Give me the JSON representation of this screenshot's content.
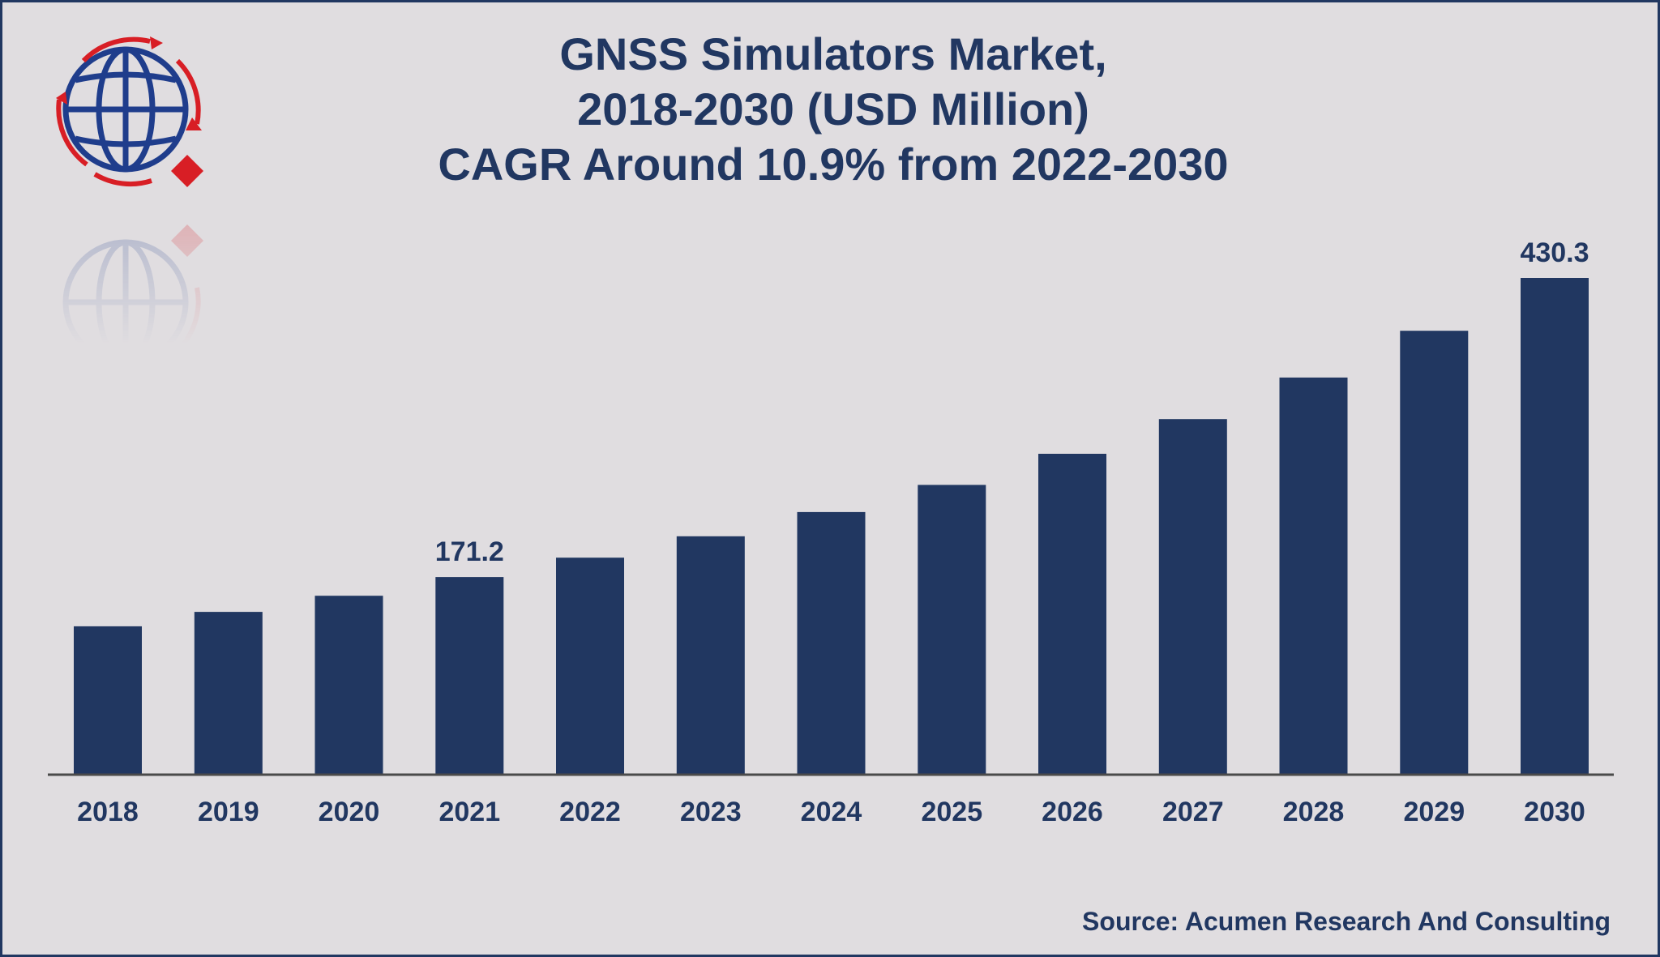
{
  "logo": {
    "icon": "globe-logo-icon",
    "colors": {
      "globe": "#1f3d8c",
      "accent": "#d81e25"
    }
  },
  "title": {
    "line1": "GNSS Simulators Market,",
    "line2": "2018-2030 (USD Million)",
    "line3": "CAGR Around 10.9% from 2022-2030"
  },
  "source": "Source: Acumen Research And Consulting",
  "colors": {
    "bar": "#213761",
    "axis": "#4a4a4a",
    "text": "#213761",
    "background": "#e0dde0"
  },
  "chart_data": {
    "type": "bar",
    "title": "GNSS Simulators Market, 2018-2030 (USD Million)",
    "subtitle": "CAGR Around 10.9% from 2022-2030",
    "xlabel": "",
    "ylabel": "",
    "grid": false,
    "legend": "none",
    "categories": [
      "2018",
      "2019",
      "2020",
      "2021",
      "2022",
      "2023",
      "2024",
      "2025",
      "2026",
      "2027",
      "2028",
      "2029",
      "2030"
    ],
    "values": [
      128.5,
      141.0,
      155.0,
      171.2,
      188.0,
      206.5,
      227.5,
      251.0,
      278.0,
      308.0,
      344.0,
      384.5,
      430.3
    ],
    "data_labels": [
      {
        "category": "2021",
        "text": "171.2"
      },
      {
        "category": "2030",
        "text": "430.3"
      }
    ],
    "ylim": [
      0,
      430.3
    ]
  }
}
